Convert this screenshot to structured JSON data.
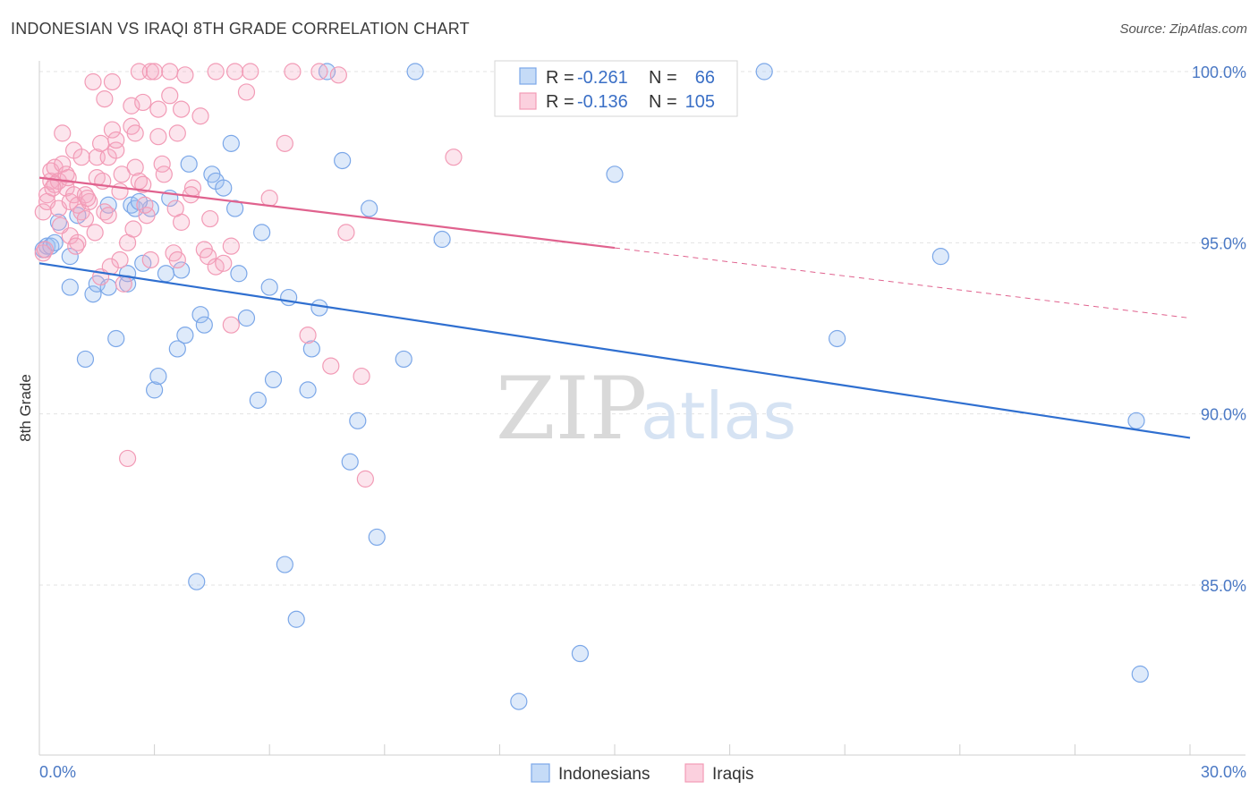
{
  "title": "INDONESIAN VS IRAQI 8TH GRADE CORRELATION CHART",
  "source": "Source: ZipAtlas.com",
  "watermark": {
    "zip": "ZIP",
    "atlas": "atlas"
  },
  "legend": {
    "rows": [
      {
        "r_label": "R = ",
        "r_value": "-0.261",
        "n_label": "N = ",
        "n_value": "66",
        "color": "#7ba7e8"
      },
      {
        "r_label": "R = ",
        "r_value": "-0.136",
        "n_label": "N = ",
        "n_value": "105",
        "color": "#f29bb6"
      }
    ]
  },
  "chart_data": {
    "type": "scatter",
    "title": "INDONESIAN VS IRAQI 8TH GRADE CORRELATION CHART",
    "xlabel": "",
    "ylabel": "8th Grade",
    "xlim": [
      0.0,
      30.0
    ],
    "ylim": [
      80.0,
      101.0
    ],
    "x_tick_labels": [
      "0.0%",
      "30.0%"
    ],
    "y_ticks": [
      85.0,
      90.0,
      95.0,
      100.0
    ],
    "y_tick_labels": [
      "85.0%",
      "90.0%",
      "95.0%",
      "100.0%"
    ],
    "series": [
      {
        "name": "Indonesians",
        "color": "#7ba7e8",
        "line_color": "#2f6fd0",
        "trend": {
          "x0": 0.0,
          "y0": 94.4,
          "x1": 30.0,
          "y1": 89.3,
          "dashed_from": null
        },
        "points": [
          [
            0.1,
            94.8
          ],
          [
            0.2,
            94.9
          ],
          [
            0.3,
            94.9
          ],
          [
            0.5,
            95.6
          ],
          [
            0.8,
            94.6
          ],
          [
            0.8,
            93.7
          ],
          [
            1.2,
            91.6
          ],
          [
            1.4,
            93.5
          ],
          [
            1.5,
            93.8
          ],
          [
            1.8,
            93.7
          ],
          [
            1.8,
            96.1
          ],
          [
            2.0,
            92.2
          ],
          [
            2.3,
            93.8
          ],
          [
            2.3,
            94.1
          ],
          [
            2.4,
            96.1
          ],
          [
            2.5,
            96.0
          ],
          [
            2.7,
            94.4
          ],
          [
            2.9,
            96.0
          ],
          [
            3.0,
            90.7
          ],
          [
            3.1,
            91.1
          ],
          [
            3.3,
            94.1
          ],
          [
            3.4,
            96.3
          ],
          [
            3.6,
            91.9
          ],
          [
            3.7,
            94.2
          ],
          [
            3.8,
            92.3
          ],
          [
            3.9,
            97.3
          ],
          [
            4.1,
            85.1
          ],
          [
            4.2,
            92.9
          ],
          [
            4.3,
            92.6
          ],
          [
            4.5,
            97.0
          ],
          [
            4.6,
            96.8
          ],
          [
            4.8,
            96.6
          ],
          [
            5.0,
            97.9
          ],
          [
            5.1,
            96.0
          ],
          [
            5.2,
            94.1
          ],
          [
            5.4,
            92.8
          ],
          [
            5.7,
            90.4
          ],
          [
            5.8,
            95.3
          ],
          [
            6.0,
            93.7
          ],
          [
            6.1,
            91.0
          ],
          [
            6.4,
            85.6
          ],
          [
            6.5,
            93.4
          ],
          [
            6.7,
            84.0
          ],
          [
            7.0,
            90.7
          ],
          [
            7.1,
            91.9
          ],
          [
            7.3,
            93.1
          ],
          [
            7.5,
            100.0
          ],
          [
            7.9,
            97.4
          ],
          [
            8.1,
            88.6
          ],
          [
            8.3,
            89.8
          ],
          [
            8.6,
            96.0
          ],
          [
            8.8,
            86.4
          ],
          [
            9.5,
            91.6
          ],
          [
            9.8,
            100.0
          ],
          [
            10.5,
            95.1
          ],
          [
            12.5,
            81.6
          ],
          [
            14.1,
            83.0
          ],
          [
            15.0,
            97.0
          ],
          [
            18.9,
            100.0
          ],
          [
            20.8,
            92.2
          ],
          [
            23.5,
            94.6
          ],
          [
            28.6,
            89.8
          ],
          [
            28.7,
            82.4
          ],
          [
            0.4,
            95.0
          ],
          [
            1.0,
            95.8
          ],
          [
            2.6,
            96.2
          ]
        ]
      },
      {
        "name": "Iraqis",
        "color": "#f29bb6",
        "line_color": "#e0628e",
        "trend": {
          "x0": 0.0,
          "y0": 96.9,
          "x1": 30.0,
          "y1": 92.8,
          "dashed_from": 15.0
        },
        "points": [
          [
            0.1,
            95.9
          ],
          [
            0.1,
            94.7
          ],
          [
            0.2,
            96.4
          ],
          [
            0.2,
            96.2
          ],
          [
            0.3,
            97.1
          ],
          [
            0.3,
            96.8
          ],
          [
            0.4,
            97.2
          ],
          [
            0.4,
            96.7
          ],
          [
            0.5,
            96.0
          ],
          [
            0.5,
            96.8
          ],
          [
            0.6,
            97.3
          ],
          [
            0.6,
            98.2
          ],
          [
            0.7,
            97.0
          ],
          [
            0.7,
            96.6
          ],
          [
            0.8,
            96.2
          ],
          [
            0.8,
            95.2
          ],
          [
            0.9,
            97.7
          ],
          [
            0.9,
            96.4
          ],
          [
            1.0,
            95.0
          ],
          [
            1.0,
            96.1
          ],
          [
            1.1,
            95.9
          ],
          [
            1.1,
            97.5
          ],
          [
            1.2,
            96.4
          ],
          [
            1.2,
            95.7
          ],
          [
            1.3,
            96.2
          ],
          [
            1.4,
            99.7
          ],
          [
            1.5,
            97.5
          ],
          [
            1.5,
            96.9
          ],
          [
            1.6,
            97.9
          ],
          [
            1.6,
            94.0
          ],
          [
            1.7,
            99.2
          ],
          [
            1.7,
            95.9
          ],
          [
            1.8,
            95.8
          ],
          [
            1.8,
            97.5
          ],
          [
            1.9,
            99.7
          ],
          [
            1.9,
            98.3
          ],
          [
            2.0,
            97.7
          ],
          [
            2.0,
            98.0
          ],
          [
            2.1,
            96.5
          ],
          [
            2.1,
            94.5
          ],
          [
            2.2,
            93.8
          ],
          [
            2.3,
            95.0
          ],
          [
            2.3,
            88.7
          ],
          [
            2.4,
            99.0
          ],
          [
            2.4,
            98.4
          ],
          [
            2.5,
            98.2
          ],
          [
            2.5,
            97.2
          ],
          [
            2.6,
            96.8
          ],
          [
            2.6,
            100.0
          ],
          [
            2.7,
            99.1
          ],
          [
            2.7,
            96.7
          ],
          [
            2.8,
            95.8
          ],
          [
            2.9,
            94.5
          ],
          [
            2.9,
            100.0
          ],
          [
            3.0,
            100.0
          ],
          [
            3.1,
            98.1
          ],
          [
            3.1,
            98.9
          ],
          [
            3.2,
            97.3
          ],
          [
            3.4,
            99.3
          ],
          [
            3.4,
            100.0
          ],
          [
            3.5,
            94.7
          ],
          [
            3.6,
            94.5
          ],
          [
            3.6,
            98.2
          ],
          [
            3.7,
            95.6
          ],
          [
            3.7,
            98.9
          ],
          [
            3.8,
            99.9
          ],
          [
            4.0,
            96.6
          ],
          [
            4.2,
            98.7
          ],
          [
            4.3,
            94.8
          ],
          [
            4.4,
            94.6
          ],
          [
            4.6,
            94.3
          ],
          [
            4.6,
            100.0
          ],
          [
            4.8,
            94.4
          ],
          [
            5.0,
            92.6
          ],
          [
            5.0,
            94.9
          ],
          [
            5.1,
            100.0
          ],
          [
            5.4,
            99.4
          ],
          [
            5.5,
            100.0
          ],
          [
            6.0,
            96.3
          ],
          [
            6.4,
            97.9
          ],
          [
            6.6,
            100.0
          ],
          [
            7.0,
            92.3
          ],
          [
            7.3,
            100.0
          ],
          [
            7.6,
            91.4
          ],
          [
            7.8,
            99.9
          ],
          [
            8.0,
            95.3
          ],
          [
            8.4,
            91.1
          ],
          [
            8.5,
            88.1
          ],
          [
            10.8,
            97.5
          ],
          [
            0.15,
            94.8
          ],
          [
            0.35,
            96.6
          ],
          [
            0.55,
            95.5
          ],
          [
            0.75,
            96.9
          ],
          [
            0.95,
            94.9
          ],
          [
            1.25,
            96.3
          ],
          [
            1.45,
            95.3
          ],
          [
            1.65,
            96.8
          ],
          [
            1.85,
            94.3
          ],
          [
            2.15,
            97.0
          ],
          [
            2.45,
            95.4
          ],
          [
            2.75,
            96.1
          ],
          [
            3.25,
            97.0
          ],
          [
            3.55,
            96.0
          ],
          [
            3.95,
            96.4
          ],
          [
            4.45,
            95.7
          ]
        ]
      }
    ]
  }
}
